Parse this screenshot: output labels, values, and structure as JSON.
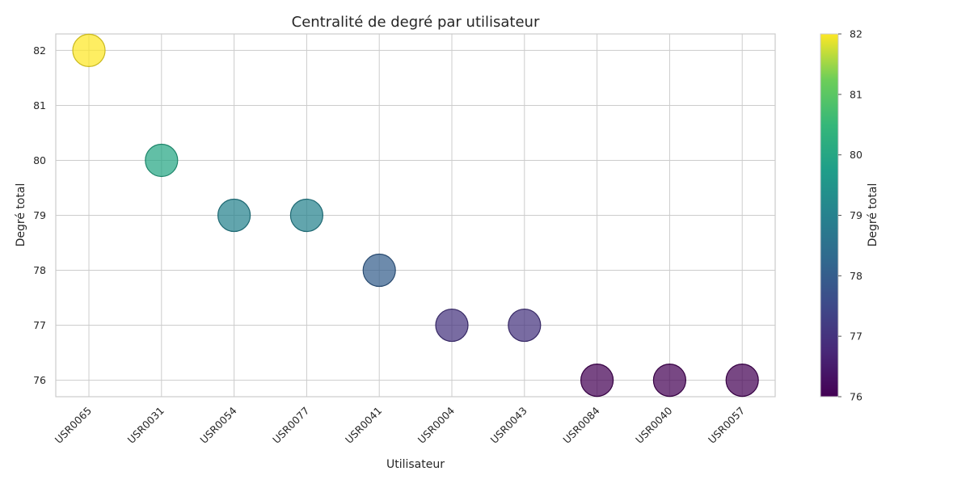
{
  "chart_data": {
    "type": "scatter",
    "title": "Centralité de degré par utilisateur",
    "xlabel": "Utilisateur",
    "ylabel": "Degré total",
    "categories": [
      "USR0065",
      "USR0031",
      "USR0054",
      "USR0077",
      "USR0041",
      "USR0004",
      "USR0043",
      "USR0084",
      "USR0040",
      "USR0057"
    ],
    "values": [
      82,
      80,
      79,
      79,
      78,
      77,
      77,
      76,
      76,
      76
    ],
    "yticks": [
      76,
      77,
      78,
      79,
      80,
      81,
      82
    ],
    "ylim": [
      75.7,
      82.3
    ],
    "grid": true,
    "colorbar": {
      "label": "Degré total",
      "colormap": "viridis",
      "range": [
        76,
        82
      ],
      "ticks": [
        76,
        77,
        78,
        79,
        80,
        81,
        82
      ]
    }
  }
}
